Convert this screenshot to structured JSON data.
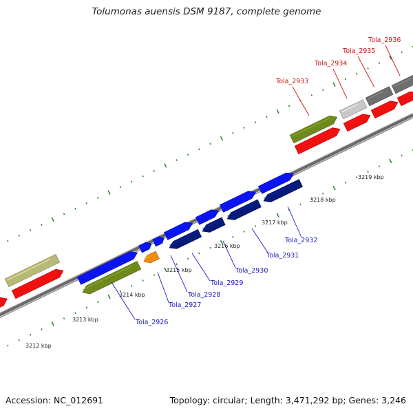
{
  "title": "Tolumonas auensis DSM 9187, complete genome",
  "footer": {
    "accession": "Accession: NC_012691",
    "topology": "Topology: circular; Length: 3,471,292 bp; Genes: 3,246"
  },
  "colors": {
    "forward_blue": "#0a14f0",
    "reverse_navy": "#061a7a",
    "red_genes": "#f01010",
    "olive": "#6e8a1c",
    "khaki": "#b8b878",
    "orange": "#f08a10",
    "gray_light": "#c8c8c8",
    "gray_dark": "#6e6e6e",
    "tick_green": "#2a8a2a",
    "label_blue": "#1a1ab4",
    "label_red": "#c81414"
  },
  "scale": {
    "unit": "kbp",
    "labels": [
      "3212 kbp",
      "3213 kbp",
      "3214 kbp",
      "3215 kbp",
      "3216 kbp",
      "3217 kbp",
      "3218 kbp",
      "3219 kbp"
    ]
  },
  "genes": [
    {
      "label": "Tola_2926",
      "strand": "reverse",
      "color": "olive"
    },
    {
      "label": "Tola_2927",
      "strand": "reverse",
      "color": "orange"
    },
    {
      "label": "Tola_2928",
      "strand": "forward",
      "color": "forward_blue"
    },
    {
      "label": "Tola_2929",
      "strand": "reverse",
      "color": "reverse_navy"
    },
    {
      "label": "Tola_2930",
      "strand": "reverse",
      "color": "reverse_navy"
    },
    {
      "label": "Tola_2931",
      "strand": "reverse",
      "color": "reverse_navy"
    },
    {
      "label": "Tola_2932",
      "strand": "reverse",
      "color": "reverse_navy"
    },
    {
      "label": "Tola_2933",
      "strand": "forward",
      "color": "olive"
    },
    {
      "label": "Tola_2934",
      "strand": "forward",
      "color": "gray_light"
    },
    {
      "label": "Tola_2935",
      "strand": "forward",
      "color": "gray_dark"
    },
    {
      "label": "Tola_2936",
      "strand": "forward",
      "color": "gray_dark"
    }
  ]
}
